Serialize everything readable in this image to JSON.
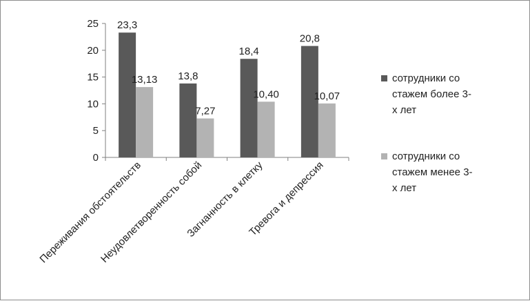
{
  "chart_data": {
    "type": "bar",
    "categories": [
      "Переживания обстоятельств",
      "Неудовлетворенность собой",
      "Загнанность в клетку",
      "Тревога и депрессия"
    ],
    "series": [
      {
        "name": "сотрудники со стажем более 3-х лет",
        "name_lines": [
          "сотрудники со",
          "стажем более 3-",
          "х лет"
        ],
        "color": "#595959",
        "values": [
          23.3,
          13.8,
          18.4,
          20.8
        ],
        "labels": [
          "23,3",
          "13,8",
          "18,4",
          "20,8"
        ]
      },
      {
        "name": "сотрудники со стажем менее 3-х лет",
        "name_lines": [
          "сотрудники со",
          "стажем менее 3-",
          "х лет"
        ],
        "color": "#b3b3b3",
        "values": [
          13.13,
          7.27,
          10.4,
          10.07
        ],
        "labels": [
          "13,13",
          "7,27",
          "10,40",
          "10,07"
        ]
      }
    ],
    "ylim": [
      0,
      25
    ],
    "yticks": [
      0,
      5,
      10,
      15,
      20,
      25
    ],
    "grid": false,
    "legend_position": "right",
    "title": "",
    "xlabel": "",
    "ylabel": ""
  }
}
